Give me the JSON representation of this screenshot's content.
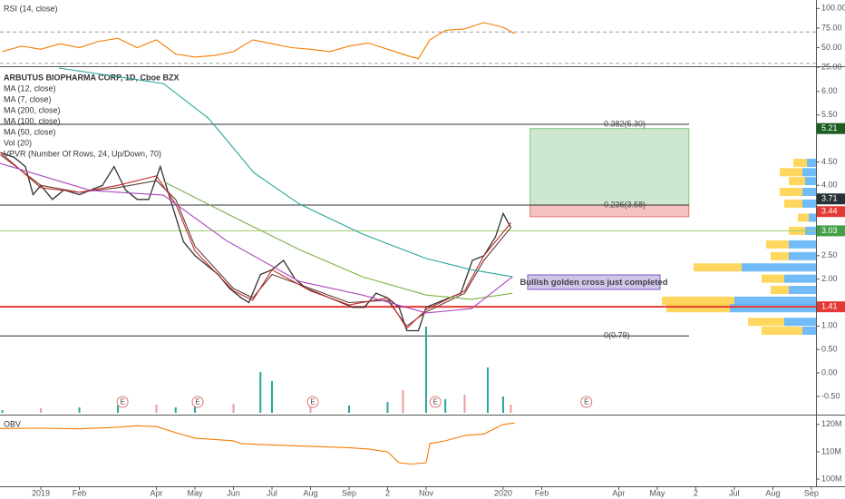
{
  "chart_data": [
    {
      "type": "line",
      "xlim": [
        -1.06,
        20.12
      ],
      "ylim": [
        27.5,
        105
      ],
      "yticks": [
        {
          "value": 100,
          "label": "100.00"
        },
        {
          "value": 75,
          "label": "75.00"
        },
        {
          "value": 50,
          "label": "50.00"
        },
        {
          "value": 25,
          "label": "25.00"
        }
      ],
      "guides": [
        70,
        30
      ],
      "series": [
        {
          "name": "RSI (14, close)",
          "color": "#f57c00",
          "x": [
            -1,
            -0.5,
            0,
            0.5,
            1,
            1.5,
            2,
            2.5,
            3,
            3.5,
            4,
            4.5,
            5,
            5.5,
            6,
            6.5,
            7,
            7.5,
            8,
            8.5,
            9,
            9.5,
            9.8,
            10.1,
            10.5,
            11,
            11.5,
            12,
            12.3
          ],
          "values": [
            45,
            52,
            48,
            55,
            50,
            58,
            62,
            50,
            60,
            42,
            38,
            40,
            45,
            60,
            55,
            50,
            48,
            45,
            52,
            56,
            48,
            40,
            36,
            60,
            72,
            74,
            82,
            76,
            68
          ]
        }
      ]
    },
    {
      "type": "line",
      "title": "ARBUTUS BIOPHARMA CORP, 1D, Cboe BZX",
      "xlim": [
        -1.06,
        20.12
      ],
      "ylim": [
        -0.85,
        6.5
      ],
      "yticks": [
        {
          "value": 6,
          "label": "6.00"
        },
        {
          "value": 5.5,
          "label": "5.50"
        },
        {
          "value": 4.5,
          "label": "4.50"
        },
        {
          "value": 4,
          "label": "4.00"
        },
        {
          "value": 2.5,
          "label": "2.50"
        },
        {
          "value": 2,
          "label": "2.00"
        },
        {
          "value": 1,
          "label": "1.00"
        },
        {
          "value": 0.5,
          "label": "0.50"
        },
        {
          "value": 0,
          "label": "0.00"
        },
        {
          "value": -0.5,
          "label": "-0.50"
        }
      ],
      "xticks": [
        {
          "value": 0,
          "label": "2019"
        },
        {
          "value": 1,
          "label": "Feb"
        },
        {
          "value": 3,
          "label": "Apr"
        },
        {
          "value": 4,
          "label": "May"
        },
        {
          "value": 5,
          "label": "Jun"
        },
        {
          "value": 6,
          "label": "Jul"
        },
        {
          "value": 7,
          "label": "Aug"
        },
        {
          "value": 8,
          "label": "Sep"
        },
        {
          "value": 9,
          "label": "2"
        },
        {
          "value": 10,
          "label": "Nov"
        },
        {
          "value": 12,
          "label": "2020"
        },
        {
          "value": 13,
          "label": "Feb"
        },
        {
          "value": 15,
          "label": "Apr"
        },
        {
          "value": 16,
          "label": "May"
        },
        {
          "value": 17,
          "label": "2"
        },
        {
          "value": 18,
          "label": "Jul"
        },
        {
          "value": 19,
          "label": "Aug"
        },
        {
          "value": 20,
          "label": "Sep"
        }
      ],
      "series": [
        {
          "color": "#333333",
          "x": [
            -1.05,
            -0.7,
            -0.4,
            -0.2,
            0,
            0.3,
            0.6,
            1,
            1.3,
            1.6,
            1.9,
            2.2,
            2.5,
            2.8,
            3.1,
            3.4,
            3.7,
            4,
            4.3,
            4.6,
            4.9,
            5.2,
            5.4,
            5.7,
            6,
            6.3,
            6.6,
            6.9,
            7.2,
            7.5,
            7.8,
            8.1,
            8.4,
            8.7,
            9,
            9.3,
            9.5,
            9.8,
            10,
            10.3,
            10.6,
            10.9,
            11.2,
            11.5,
            11.8,
            12,
            12.2
          ],
          "values": [
            4.7,
            4.6,
            4.4,
            3.8,
            4.0,
            3.7,
            3.9,
            3.8,
            3.9,
            4.0,
            4.4,
            3.9,
            3.7,
            3.7,
            4.4,
            3.6,
            2.8,
            2.5,
            2.3,
            2.1,
            1.8,
            1.6,
            1.5,
            2.1,
            2.2,
            2.4,
            2.0,
            1.8,
            1.7,
            1.6,
            1.5,
            1.4,
            1.4,
            1.7,
            1.6,
            1.4,
            0.9,
            0.9,
            1.4,
            1.5,
            1.6,
            1.7,
            2.4,
            2.5,
            2.9,
            3.4,
            3.1
          ]
        },
        {
          "name": "MA (12, close)",
          "color": "#5d4037",
          "x": [
            -1.05,
            0,
            1,
            2,
            3,
            3.5,
            4,
            5,
            5.5,
            6,
            7,
            8,
            9,
            9.5,
            10,
            11,
            11.5,
            12.2
          ],
          "values": [
            4.65,
            4.0,
            3.85,
            3.95,
            4.1,
            3.7,
            2.7,
            1.8,
            1.6,
            2.1,
            1.8,
            1.5,
            1.55,
            1.0,
            1.3,
            1.7,
            2.4,
            3.1
          ]
        },
        {
          "name": "MA (7, close)",
          "color": "#c62828",
          "x": [
            -1.05,
            0,
            1,
            2,
            3,
            3.5,
            4,
            5,
            5.5,
            6,
            7,
            8,
            9,
            9.5,
            10,
            11,
            11.5,
            12.2
          ],
          "values": [
            4.7,
            3.95,
            3.85,
            4.0,
            4.2,
            3.6,
            2.6,
            1.75,
            1.55,
            2.2,
            1.75,
            1.45,
            1.6,
            0.95,
            1.35,
            1.75,
            2.5,
            3.2
          ]
        },
        {
          "name": "MA (200, close)",
          "color": "#26a69a",
          "x": [
            0.47,
            3.18,
            4.35,
            5.53,
            6.71,
            8.35,
            10,
            11.18,
            12.24
          ],
          "values": [
            6.5,
            6.17,
            5.43,
            4.27,
            3.6,
            2.96,
            2.44,
            2.2,
            2.05
          ]
        },
        {
          "name": "MA (100, close)",
          "color": "#7cb342",
          "x": [
            3.18,
            4.82,
            6.71,
            8.35,
            10,
            11.18,
            12.24
          ],
          "values": [
            4.08,
            3.4,
            2.63,
            2.05,
            1.66,
            1.57,
            1.7
          ]
        },
        {
          "name": "MA (50, close)",
          "color": "#ab47bc",
          "x": [
            -1.06,
            1.29,
            3.18,
            4.82,
            6.71,
            8.35,
            10,
            11.18,
            12.24
          ],
          "values": [
            4.47,
            3.89,
            3.79,
            2.82,
            1.95,
            1.66,
            1.28,
            1.37,
            2.05
          ]
        }
      ],
      "volume": {
        "name": "Vol (20)",
        "color": "#26a69a",
        "x": [
          -1,
          0,
          1,
          2,
          3,
          3.5,
          4,
          5,
          5.7,
          6,
          7,
          8,
          9,
          9.4,
          10,
          10.5,
          11,
          11.6,
          12,
          12.2
        ],
        "values": [
          0.3,
          0.5,
          0.6,
          0.8,
          0.9,
          0.6,
          0.8,
          1,
          4.5,
          3.5,
          1,
          0.8,
          1.2,
          2.5,
          9.5,
          1.5,
          2,
          5,
          1.8,
          0.9
        ]
      },
      "vpvr": {
        "name": "VPVR (Number Of Rows, 24, Up/Down, 70)",
        "up_color": "#42a5f5",
        "down_color": "#ffca28",
        "rows": [
          {
            "price": 4.47,
            "up": 10,
            "down": 15
          },
          {
            "price": 4.27,
            "up": 15,
            "down": 25
          },
          {
            "price": 4.08,
            "up": 12,
            "down": 18
          },
          {
            "price": 3.85,
            "up": 15,
            "down": 25
          },
          {
            "price": 3.6,
            "up": 15,
            "down": 20
          },
          {
            "price": 3.3,
            "up": 8,
            "down": 12
          },
          {
            "price": 3.02,
            "up": 12,
            "down": 18
          },
          {
            "price": 2.73,
            "up": 30,
            "down": 25
          },
          {
            "price": 2.48,
            "up": 30,
            "down": 20
          },
          {
            "price": 2.24,
            "up": 82,
            "down": 53
          },
          {
            "price": 2.0,
            "up": 35,
            "down": 25
          },
          {
            "price": 1.76,
            "up": 30,
            "down": 20
          },
          {
            "price": 1.53,
            "up": 90,
            "down": 80
          },
          {
            "price": 1.37,
            "up": 95,
            "down": 70
          },
          {
            "price": 1.08,
            "up": 35,
            "down": 40
          },
          {
            "price": 0.89,
            "up": 15,
            "down": 45
          }
        ]
      },
      "levels": [
        {
          "label": "0.382(5.30)",
          "value": 5.3
        },
        {
          "label": "0.236(3.58)",
          "value": 3.58
        },
        {
          "label": "0(0.79)",
          "value": 0.79
        }
      ],
      "hlines": [
        {
          "value": 1.41,
          "color": "#e53935"
        },
        {
          "value": 3.03,
          "color": "#9ccc65"
        }
      ],
      "position": {
        "x": [
          12.7,
          16.82
        ],
        "entry": 3.58,
        "target": 5.21,
        "stop": 3.33
      },
      "price_labels": [
        {
          "value": 5.21,
          "color": "#1b5e20"
        },
        {
          "value": 3.71,
          "color": "#263238"
        },
        {
          "value": 3.44,
          "color": "#e53935"
        },
        {
          "value": 3.03,
          "color": "#43a047"
        },
        {
          "value": 1.41,
          "color": "#e53935"
        }
      ],
      "annotation": "Bullish golden cross just completed",
      "events": {
        "label": "E",
        "x": [
          2.12,
          4.07,
          7.06,
          10.24,
          14.16
        ]
      }
    },
    {
      "type": "line",
      "xlim": [
        -1.06,
        20.12
      ],
      "ylim": [
        97.7,
        122.6
      ],
      "yticks": [
        {
          "value": 120,
          "label": "120M"
        },
        {
          "value": 110,
          "label": "110M"
        },
        {
          "value": 100,
          "label": "100M"
        }
      ],
      "series": [
        {
          "name": "OBV",
          "color": "#f57c00",
          "x": [
            -1.06,
            0,
            1,
            2,
            2.5,
            3,
            3.5,
            4,
            5,
            5.2,
            6,
            7,
            8,
            8.5,
            9,
            9.3,
            9.6,
            10,
            10.1,
            10.5,
            11,
            11.5,
            12,
            12.3
          ],
          "values": [
            118.5,
            118.6,
            118.4,
            119,
            119.5,
            119.2,
            117,
            115,
            114,
            113,
            112.5,
            112,
            111.5,
            111,
            110,
            106,
            105.5,
            106,
            113,
            114,
            116,
            116.5,
            120,
            120.5
          ]
        }
      ]
    }
  ]
}
